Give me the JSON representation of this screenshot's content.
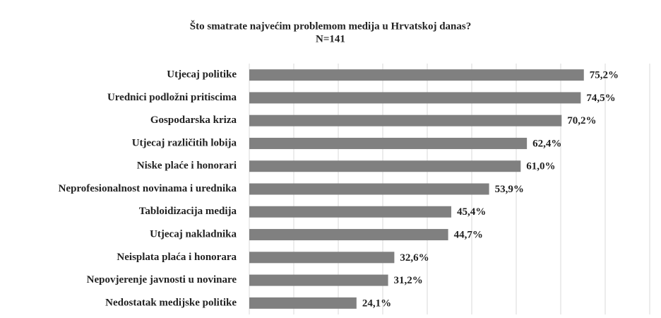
{
  "chart_data": {
    "type": "bar",
    "orientation": "horizontal",
    "title": "Što smatrate najvećim problemom medija u Hrvatskoj danas?",
    "subtitle": "N=141",
    "categories": [
      "Utjecaj politike",
      "Urednici podložni pritiscima",
      "Gospodarska kriza",
      "Utjecaj različitih lobija",
      "Niske plaće i honorari",
      "Neprofesionalnost novinama i urednika",
      "Tabloidizacija medija",
      "Utjecaj nakladnika",
      "Neisplata plaća i honorara",
      "Nepovjerenje javnosti u novinare",
      "Nedostatak medijske politike"
    ],
    "values": [
      75.2,
      74.5,
      70.2,
      62.4,
      61.0,
      53.9,
      45.4,
      44.7,
      32.6,
      31.2,
      24.1
    ],
    "value_labels": [
      "75,2%",
      "74,5%",
      "70,2%",
      "62,4%",
      "61,0%",
      "53,9%",
      "45,4%",
      "44,7%",
      "32,6%",
      "31,2%",
      "24,1%"
    ],
    "color": "#808080",
    "xlim": [
      0,
      90
    ],
    "xticks": [
      0,
      10,
      20,
      30,
      40,
      50,
      60,
      70,
      80,
      90
    ],
    "grid": true
  }
}
